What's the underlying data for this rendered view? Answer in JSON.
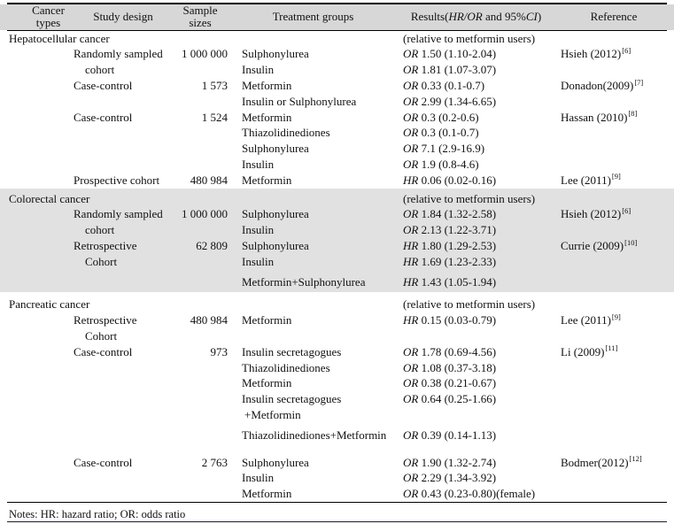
{
  "page": {
    "background": "#ffffff",
    "header_bg": "#d7d7d7",
    "band_bg": "#e1e1e1",
    "rule_color": "#000000"
  },
  "table": {
    "header": {
      "col1a": "Cancer",
      "col1b": "types",
      "col2": "Study design",
      "col3a": "Sample",
      "col3b": "sizes",
      "col4": "Treatment groups",
      "results_parts": {
        "p1": "Results(",
        "p2": "HR/OR",
        "p3": " and 95%",
        "p4": "CI",
        "p5": ")"
      },
      "col6": "Reference"
    },
    "sections": [
      {
        "title": "Hepatocellular cancer",
        "note": "(relative to metformin users)",
        "shaded": false,
        "rows": [
          {
            "design": "Randomly sampled",
            "size": "1 000 000",
            "treatment": "Sulphonylurea",
            "stat": "OR",
            "value": "1.50 (1.10-2.04)",
            "ref": "Hsieh (2012)",
            "sup": "[6]"
          },
          {
            "design": "cohort",
            "design_cont": true,
            "treatment": "Insulin",
            "stat": "OR",
            "value": "1.81 (1.07-3.07)"
          },
          {
            "design": "Case-control",
            "size": "1 573",
            "treatment": "Metformin",
            "stat": "OR",
            "value": "0.33 (0.1-0.7)",
            "ref": "Donadon(2009)",
            "sup": "[7]"
          },
          {
            "treatment": "Insulin or Sulphonylurea",
            "stat": "OR",
            "value": "2.99 (1.34-6.65)"
          },
          {
            "design": "Case-control",
            "size": "1 524",
            "treatment": "Metformin",
            "stat": "OR",
            "value": "0.3 (0.2-0.6)",
            "ref": "Hassan (2010)",
            "sup": "[8]"
          },
          {
            "treatment": "Thiazolidinediones",
            "stat": "OR",
            "value": "0.3 (0.1-0.7)"
          },
          {
            "treatment": "Sulphonylurea",
            "stat": "OR",
            "value": "7.1 (2.9-16.9)"
          },
          {
            "treatment": "Insulin",
            "stat": "OR",
            "value": "1.9 (0.8-4.6)"
          },
          {
            "design": "Prospective cohort",
            "size": "480 984",
            "treatment": "Metformin",
            "stat": "HR",
            "value": "0.06 (0.02-0.16)",
            "ref": "Lee (2011)",
            "sup": "[9]"
          }
        ]
      },
      {
        "title": "Colorectal cancer",
        "note": "(relative to metformin users)",
        "shaded": true,
        "rows": [
          {
            "design": "Randomly sampled",
            "size": "1 000 000",
            "treatment": "Sulphonylurea",
            "stat": "OR",
            "value": "1.84 (1.32-2.58)",
            "ref": "Hsieh (2012)",
            "sup": "[6]"
          },
          {
            "design": "cohort",
            "design_cont": true,
            "treatment": "Insulin",
            "stat": "OR",
            "value": "2.13 (1.22-3.71)"
          },
          {
            "design": "Retrospective",
            "size": "62 809",
            "treatment": "Sulphonylurea",
            "stat": "HR",
            "value": "1.80 (1.29-2.53)",
            "ref": "Currie (2009)",
            "sup": "[10]"
          },
          {
            "design": "Cohort",
            "design_cont": true,
            "treatment": "Insulin",
            "stat": "HR",
            "value": "1.69 (1.23-2.33)"
          },
          {
            "treatment": "Metformin+Sulphonylurea",
            "stat": "HR",
            "value": "1.43 (1.05-1.94)",
            "gap": "sm"
          }
        ]
      },
      {
        "title": "Pancreatic cancer",
        "note": "(relative to metformin users)",
        "shaded": false,
        "rows": [
          {
            "design": "Retrospective",
            "size": "480 984",
            "treatment": "Metformin",
            "stat": "HR",
            "value": "0.15 (0.03-0.79)",
            "ref": "Lee (2011)",
            "sup": "[9]"
          },
          {
            "design": "Cohort",
            "design_cont": true
          },
          {
            "design": "Case-control",
            "size": "973",
            "treatment": "Insulin secretagogues",
            "stat": "OR",
            "value": "1.78 (0.69-4.56)",
            "ref": "Li (2009)",
            "sup": "[11]"
          },
          {
            "treatment": "Thiazolidinediones",
            "stat": "OR",
            "value": "1.08 (0.37-3.18)"
          },
          {
            "treatment": "Metformin",
            "stat": "OR",
            "value": "0.38 (0.21-0.67)"
          },
          {
            "treatment": "Insulin secretagogues",
            "stat": "OR",
            "value": "0.64 (0.25-1.66)"
          },
          {
            "treatment": "+Metformin",
            "treat_cont": true
          },
          {
            "treatment": "Thiazolidinediones+Metformin",
            "stat": "OR",
            "value": "0.39 (0.14-1.13)",
            "gap": "sm"
          },
          {
            "design": "Case-control",
            "size": "2 763",
            "treatment": "Sulphonylurea",
            "stat": "OR",
            "value": "1.90 (1.32-2.74)",
            "ref": "Bodmer(2012)",
            "sup": "[12]",
            "gap": "md"
          },
          {
            "treatment": "Insulin",
            "stat": "OR",
            "value": "2.29 (1.34-3.92)"
          },
          {
            "treatment": "Metformin",
            "stat": "OR",
            "value": "0.43 (0.23-0.80)(female)"
          }
        ]
      }
    ],
    "notes": "Notes: HR: hazard ratio; OR: odds ratio"
  }
}
